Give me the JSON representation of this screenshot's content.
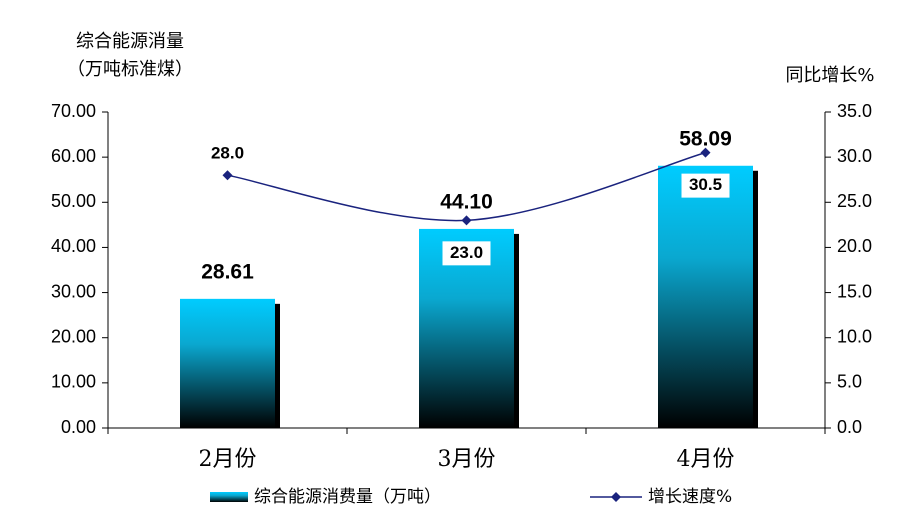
{
  "chart_data": {
    "type": "bar_line",
    "y_label": [
      "综合能源消量",
      "（万吨标准煤）"
    ],
    "y2_label": "同比增长%",
    "categories": [
      "2月份",
      "3月份",
      "4月份"
    ],
    "series": [
      {
        "name": "综合能源消费量（万吨）",
        "color": "#00c8f8",
        "type": "bar",
        "values": [
          28.61,
          44.1,
          58.09
        ],
        "value_labels": [
          "28.61",
          "44.10",
          "58.09"
        ]
      },
      {
        "name": "增长速度%",
        "color": "#1a237e",
        "type": "line",
        "axis": "y2",
        "values": [
          28.0,
          23.0,
          30.5
        ],
        "value_labels": [
          "28.0",
          "23.0",
          "30.5"
        ]
      }
    ],
    "ylim": [
      0,
      70
    ],
    "yticks": [
      {
        "value": 0,
        "label": "0.00"
      },
      {
        "value": 10,
        "label": "10.00"
      },
      {
        "value": 20,
        "label": "20.00"
      },
      {
        "value": 30,
        "label": "30.00"
      },
      {
        "value": 40,
        "label": "40.00"
      },
      {
        "value": 50,
        "label": "50.00"
      },
      {
        "value": 60,
        "label": "60.00"
      },
      {
        "value": 70,
        "label": "70.00"
      }
    ],
    "y2lim": [
      0,
      35
    ],
    "y2ticks": [
      {
        "value": 0,
        "label": "0.0"
      },
      {
        "value": 5,
        "label": "5.0"
      },
      {
        "value": 10,
        "label": "10.0"
      },
      {
        "value": 15,
        "label": "15.0"
      },
      {
        "value": 20,
        "label": "20.0"
      },
      {
        "value": 25,
        "label": "25.0"
      },
      {
        "value": 30,
        "label": "30.0"
      },
      {
        "value": 35,
        "label": "35.0"
      }
    ]
  }
}
